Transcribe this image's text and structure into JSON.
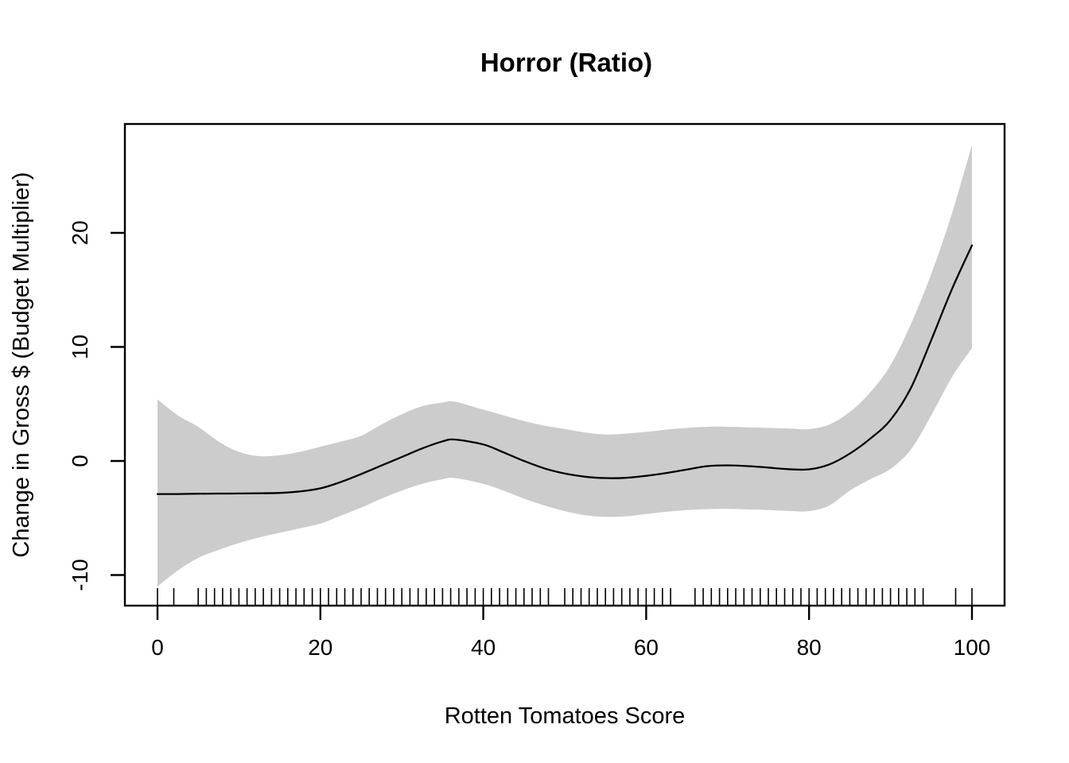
{
  "chart_data": {
    "type": "line",
    "title": "Horror (Ratio)",
    "xlabel": "Rotten Tomatoes Score",
    "ylabel": "Change in Gross $ (Budget Multiplier)",
    "x_ticks": [
      0,
      20,
      40,
      60,
      80,
      100
    ],
    "y_ticks": [
      -10,
      0,
      10,
      20
    ],
    "xlim": [
      -4,
      104
    ],
    "ylim": [
      -12.7,
      29.5
    ],
    "grid": false,
    "legend": "none",
    "line_color": "#000000",
    "band_color": "#cccccc",
    "x": [
      0,
      2.5,
      5,
      7.5,
      10,
      12.5,
      15,
      17.5,
      20,
      22.5,
      25,
      27.5,
      30,
      32.5,
      35,
      36.5,
      40,
      42.5,
      45,
      47.5,
      50,
      52.5,
      55,
      57.5,
      60,
      62.5,
      65,
      67.5,
      70,
      72.5,
      75,
      77.5,
      80,
      82.5,
      85,
      87.5,
      90,
      92.5,
      95,
      97.5,
      100
    ],
    "series": [
      {
        "name": "smooth-fit",
        "values": [
          -2.9,
          -2.9,
          -2.87,
          -2.86,
          -2.85,
          -2.83,
          -2.8,
          -2.67,
          -2.4,
          -1.85,
          -1.15,
          -0.4,
          0.35,
          1.1,
          1.72,
          1.88,
          1.45,
          0.75,
          0.0,
          -0.65,
          -1.1,
          -1.38,
          -1.5,
          -1.48,
          -1.3,
          -1.05,
          -0.75,
          -0.45,
          -0.38,
          -0.45,
          -0.58,
          -0.72,
          -0.73,
          -0.3,
          0.65,
          1.95,
          3.6,
          6.4,
          10.6,
          15.0,
          18.9
        ]
      },
      {
        "name": "ci-upper",
        "values": [
          5.4,
          4.0,
          3.0,
          1.7,
          0.8,
          0.42,
          0.5,
          0.8,
          1.25,
          1.7,
          2.2,
          3.2,
          4.1,
          4.8,
          5.12,
          5.2,
          4.5,
          4.0,
          3.5,
          3.1,
          2.8,
          2.5,
          2.32,
          2.4,
          2.55,
          2.75,
          2.9,
          3.0,
          3.0,
          2.95,
          2.9,
          2.85,
          2.8,
          3.2,
          4.3,
          6.0,
          8.4,
          12.0,
          16.4,
          21.6,
          27.7
        ]
      },
      {
        "name": "ci-lower",
        "values": [
          -11.0,
          -9.6,
          -8.5,
          -7.8,
          -7.2,
          -6.7,
          -6.3,
          -5.9,
          -5.5,
          -4.8,
          -4.1,
          -3.3,
          -2.6,
          -2.0,
          -1.6,
          -1.5,
          -2.0,
          -2.6,
          -3.3,
          -3.9,
          -4.4,
          -4.75,
          -4.9,
          -4.85,
          -4.65,
          -4.45,
          -4.3,
          -4.22,
          -4.2,
          -4.25,
          -4.3,
          -4.38,
          -4.4,
          -3.9,
          -2.6,
          -1.6,
          -0.7,
          1.0,
          4.0,
          7.3,
          9.9
        ]
      }
    ],
    "rug_x": [
      0,
      2,
      5,
      6,
      7,
      8,
      9,
      10,
      11,
      12,
      13,
      14,
      15,
      16,
      17,
      18,
      19,
      20,
      21,
      22,
      23,
      24,
      25,
      26,
      27,
      28,
      29,
      30,
      31,
      32,
      33,
      34,
      35,
      36,
      37,
      38,
      39,
      40,
      41,
      42,
      43,
      44,
      45,
      46,
      47,
      48,
      50,
      51,
      52,
      53,
      54,
      55,
      56,
      57,
      58,
      59,
      60,
      61,
      62,
      63,
      66,
      67,
      68,
      69,
      70,
      71,
      72,
      73,
      74,
      75,
      76,
      77,
      78,
      79,
      80,
      81,
      82,
      83,
      84,
      85,
      86,
      87,
      88,
      89,
      90,
      91,
      92,
      93,
      94,
      98,
      100
    ]
  }
}
